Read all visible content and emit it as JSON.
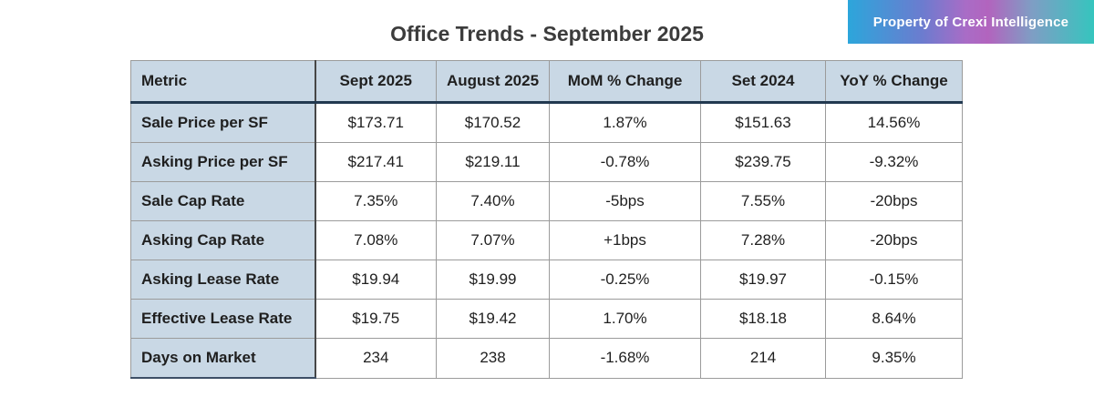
{
  "page": {
    "title": "Office Trends - September 2025",
    "badge_label": "Property of Crexi Intelligence"
  },
  "colors": {
    "table_header_bg": "#c9d8e5",
    "header_border_dark": "#223950",
    "badge_gradient": [
      "#2ca6db 0%",
      "#6b7ccf 30%",
      "#a96cc6 48%",
      "#b264be 57%",
      "#7e9ec4 75%",
      "#35c5be 100%"
    ],
    "badge_text": "#ffffff"
  },
  "table": {
    "columns": [
      "Metric",
      "Sept 2025",
      "August 2025",
      "MoM % Change",
      "Set 2024",
      "YoY % Change"
    ],
    "rows": [
      [
        "Sale Price per SF",
        "$173.71",
        "$170.52",
        "1.87%",
        "$151.63",
        "14.56%"
      ],
      [
        "Asking Price per SF",
        "$217.41",
        "$219.11",
        "-0.78%",
        "$239.75",
        "-9.32%"
      ],
      [
        "Sale Cap Rate",
        "7.35%",
        "7.40%",
        "-5bps",
        "7.55%",
        "-20bps"
      ],
      [
        "Asking Cap Rate",
        "7.08%",
        "7.07%",
        "+1bps",
        "7.28%",
        "-20bps"
      ],
      [
        "Asking Lease Rate",
        "$19.94",
        "$19.99",
        "-0.25%",
        "$19.97",
        "-0.15%"
      ],
      [
        "Effective Lease Rate",
        "$19.75",
        "$19.42",
        "1.70%",
        "$18.18",
        "8.64%"
      ],
      [
        "Days on Market",
        "234",
        "238",
        "-1.68%",
        "214",
        "9.35%"
      ]
    ]
  },
  "chart_data": {
    "type": "table",
    "title": "Office Trends - September 2025",
    "columns": [
      "Metric",
      "Sept 2025",
      "August 2025",
      "MoM % Change",
      "Set 2024",
      "YoY % Change"
    ],
    "rows": [
      [
        "Sale Price per SF",
        "$173.71",
        "$170.52",
        "1.87%",
        "$151.63",
        "14.56%"
      ],
      [
        "Asking Price per SF",
        "$217.41",
        "$219.11",
        "-0.78%",
        "$239.75",
        "-9.32%"
      ],
      [
        "Sale Cap Rate",
        "7.35%",
        "7.40%",
        "-5bps",
        "7.55%",
        "-20bps"
      ],
      [
        "Asking Cap Rate",
        "7.08%",
        "7.07%",
        "+1bps",
        "7.28%",
        "-20bps"
      ],
      [
        "Asking Lease Rate",
        "$19.94",
        "$19.99",
        "-0.25%",
        "$19.97",
        "-0.15%"
      ],
      [
        "Effective Lease Rate",
        "$19.75",
        "$19.42",
        "1.70%",
        "$18.18",
        "8.64%"
      ],
      [
        "Days on Market",
        "234",
        "238",
        "-1.68%",
        "214",
        "9.35%"
      ]
    ]
  }
}
